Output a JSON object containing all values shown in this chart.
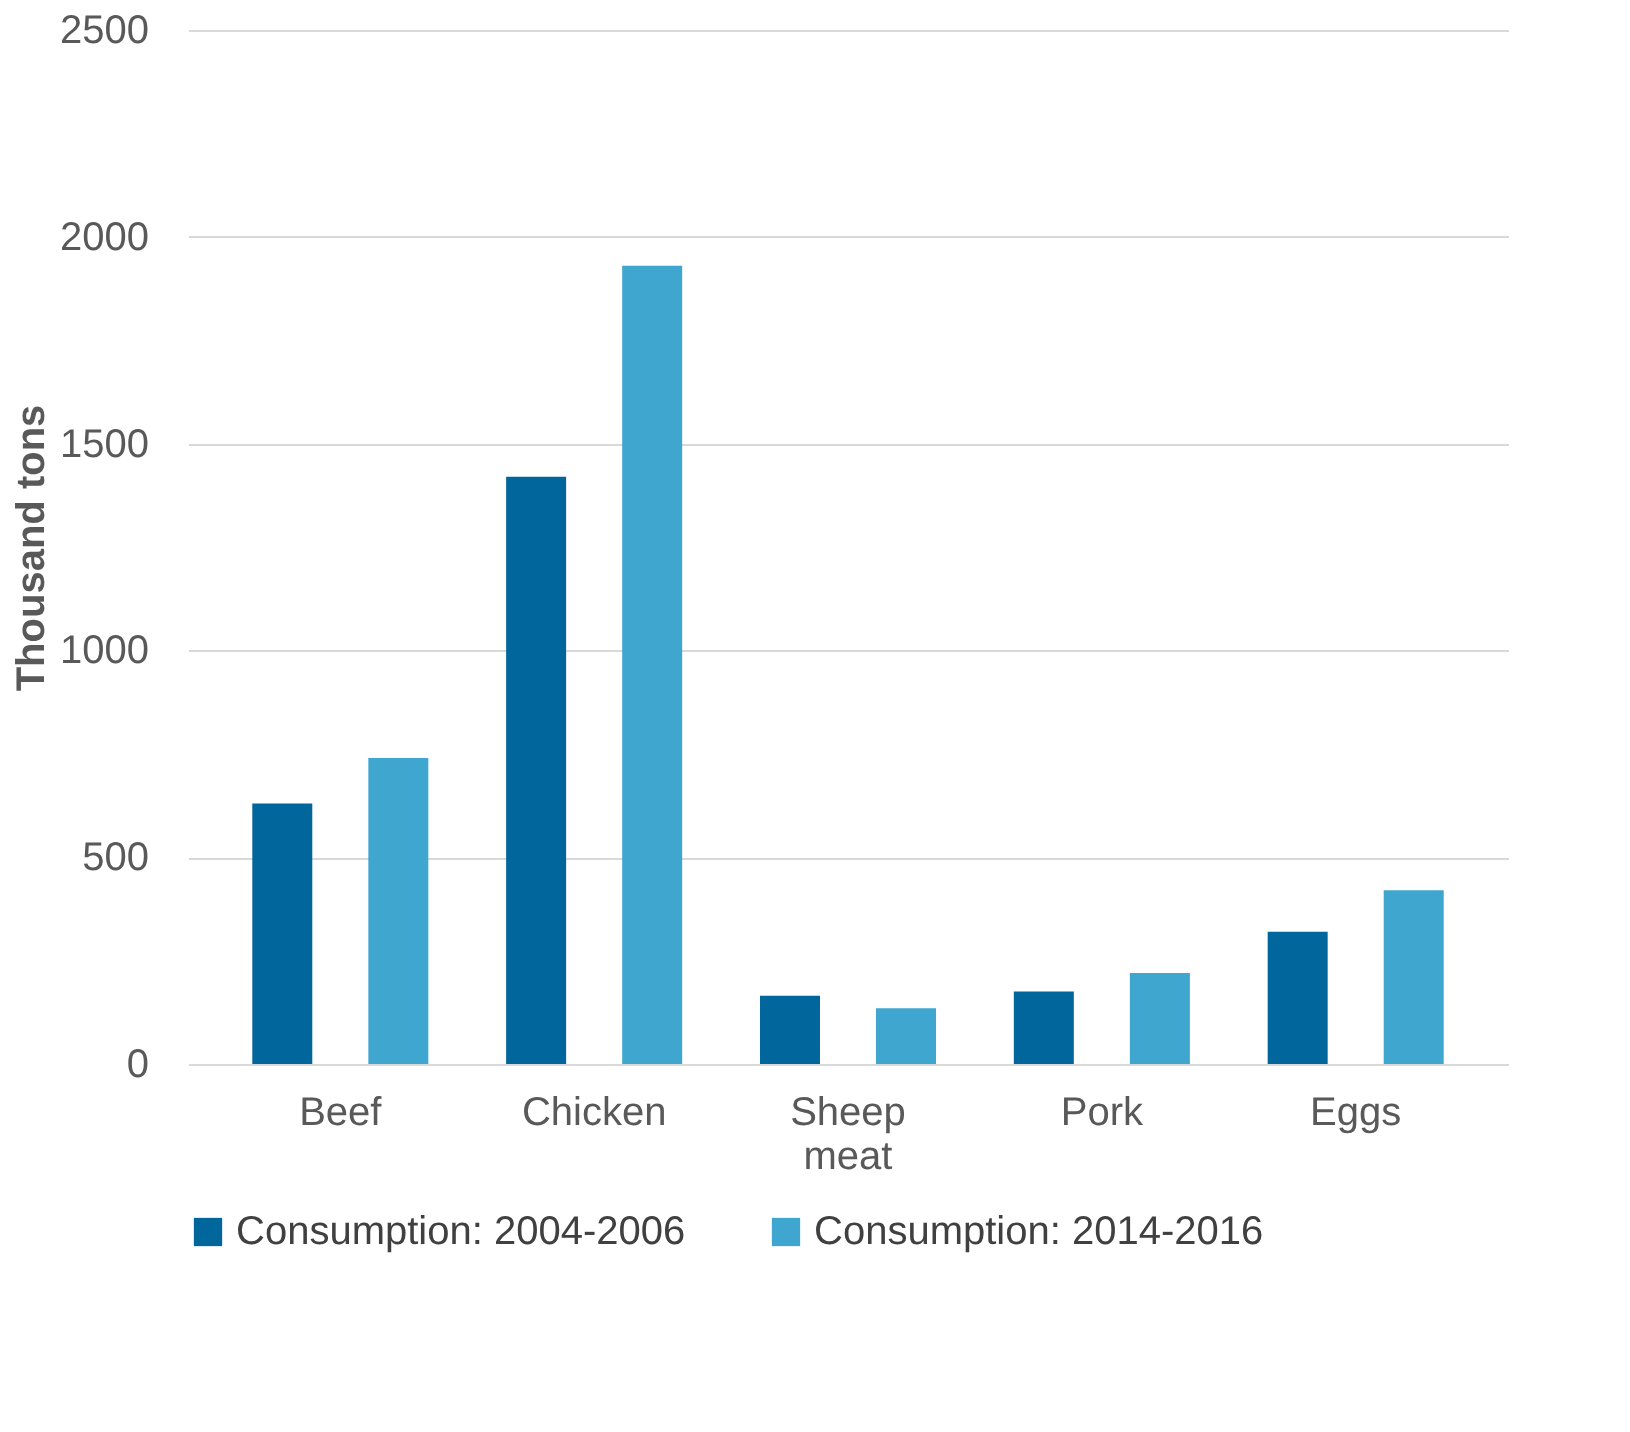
{
  "chart_data": {
    "type": "bar",
    "ylabel": "Thousand tons",
    "categories": [
      "Beef",
      "Chicken",
      "Sheep meat",
      "Pork",
      "Eggs"
    ],
    "series": [
      {
        "name": "Consumption: 2004-2006",
        "color": "#00669c",
        "values": [
          630,
          1420,
          165,
          175,
          320
        ]
      },
      {
        "name": "Consumption: 2014-2016",
        "color": "#3fa6cf",
        "values": [
          740,
          1930,
          135,
          220,
          420
        ]
      }
    ],
    "ylim": [
      0,
      2500
    ],
    "yticks": [
      0,
      500,
      1000,
      1500,
      2000,
      2500
    ],
    "grid": "y",
    "legend": "bottom"
  }
}
